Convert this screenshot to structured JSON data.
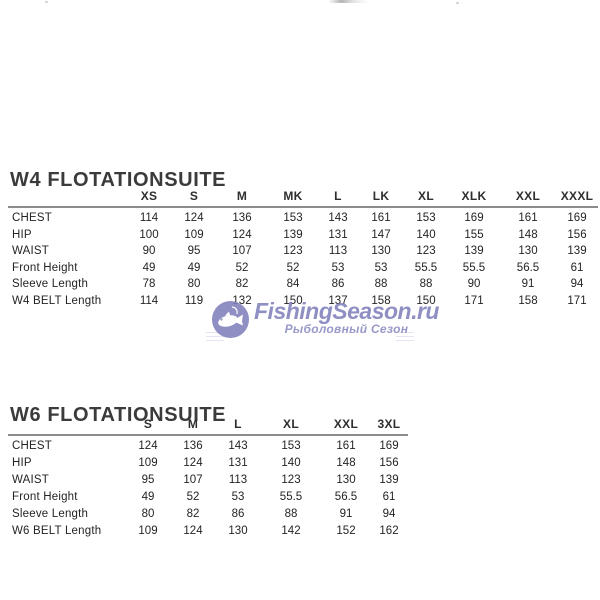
{
  "page": {
    "background_color": "#ffffff",
    "title_color": "#3b3b3b",
    "rule_color": "#8c8c8c"
  },
  "watermark": {
    "brand": "FishingSeason.ru",
    "subtitle": "Рыболовный Сезон",
    "color": "#8080bc",
    "icon": "fish-in-circle-icon"
  },
  "tables": [
    {
      "title": "W4 FLOTATIONSUITE",
      "columns": [
        "XS",
        "S",
        "M",
        "MK",
        "L",
        "LK",
        "XL",
        "XLK",
        "XXL",
        "XXXL"
      ],
      "rows": [
        {
          "label": "CHEST",
          "values": [
            "114",
            "124",
            "136",
            "153",
            "143",
            "161",
            "153",
            "169",
            "161",
            "169"
          ]
        },
        {
          "label": "HIP",
          "values": [
            "100",
            "109",
            "124",
            "139",
            "131",
            "147",
            "140",
            "155",
            "148",
            "156"
          ]
        },
        {
          "label": "WAIST",
          "values": [
            "90",
            "95",
            "107",
            "123",
            "113",
            "130",
            "123",
            "139",
            "130",
            "139"
          ]
        },
        {
          "label": "Front Height",
          "values": [
            "49",
            "49",
            "52",
            "52",
            "53",
            "53",
            "55.5",
            "55.5",
            "56.5",
            "61"
          ]
        },
        {
          "label": "Sleeve Length",
          "values": [
            "78",
            "80",
            "82",
            "84",
            "86",
            "88",
            "88",
            "90",
            "91",
            "94"
          ]
        },
        {
          "label": "W4 BELT Length",
          "values": [
            "114",
            "119",
            "132",
            "150",
            "137",
            "158",
            "150",
            "171",
            "158",
            "171"
          ]
        }
      ]
    },
    {
      "title": "W6 FLOTATIONSUITE",
      "columns": [
        "S",
        "M",
        "L",
        "XL",
        "XXL",
        "3XL"
      ],
      "rows": [
        {
          "label": "CHEST",
          "values": [
            "124",
            "136",
            "143",
            "153",
            "161",
            "169"
          ]
        },
        {
          "label": "HIP",
          "values": [
            "109",
            "124",
            "131",
            "140",
            "148",
            "156"
          ]
        },
        {
          "label": "WAIST",
          "values": [
            "95",
            "107",
            "113",
            "123",
            "130",
            "139"
          ]
        },
        {
          "label": "Front Height",
          "values": [
            "49",
            "52",
            "53",
            "55.5",
            "56.5",
            "61"
          ]
        },
        {
          "label": "Sleeve Length",
          "values": [
            "80",
            "82",
            "86",
            "88",
            "91",
            "94"
          ]
        },
        {
          "label": "W6 BELT Length",
          "values": [
            "109",
            "124",
            "130",
            "142",
            "152",
            "162"
          ]
        }
      ]
    }
  ]
}
